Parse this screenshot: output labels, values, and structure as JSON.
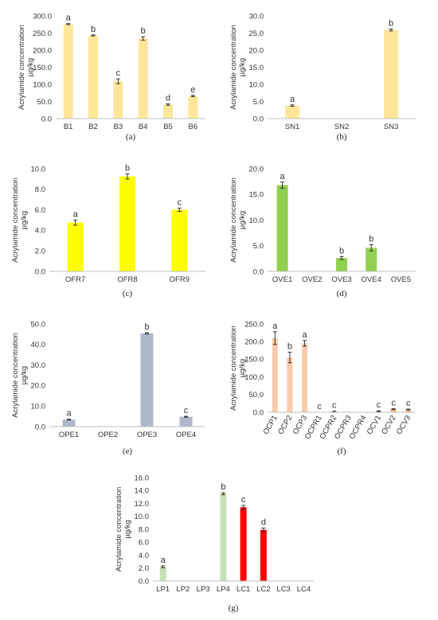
{
  "chart_data": [
    {
      "type": "bar",
      "panel_label": "(a)",
      "ylabel_lines": [
        "Acrylamide concentration",
        "µg/kg"
      ],
      "ylim": [
        0,
        300
      ],
      "yticks": [
        "0.0",
        "50.0",
        "100.0",
        "150.0",
        "200.0",
        "250.0",
        "300.0"
      ],
      "categories": [
        "B1",
        "B2",
        "B3",
        "B4",
        "B5",
        "B6"
      ],
      "values": [
        276,
        243,
        109,
        234,
        41,
        66
      ],
      "errors": [
        1.5,
        1.5,
        7,
        5,
        2,
        2
      ],
      "letters": [
        "a",
        "b",
        "c",
        "b",
        "d",
        "e"
      ],
      "colors": [
        "#ffe699",
        "#ffe699",
        "#ffe699",
        "#ffe699",
        "#ffe699",
        "#ffe699"
      ],
      "grid": false
    },
    {
      "type": "bar",
      "panel_label": "(b)",
      "ylabel_lines": [
        "Acrylamide concentration",
        "µg/kg"
      ],
      "ylim": [
        0,
        30
      ],
      "yticks": [
        "0.0",
        "5.0",
        "10.0",
        "15.0",
        "20.0",
        "25.0",
        "30.0"
      ],
      "categories": [
        "SN1",
        "SN2",
        "SN3"
      ],
      "values": [
        3.8,
        0,
        25.9
      ],
      "errors": [
        0.2,
        0,
        0.3
      ],
      "letters": [
        "a",
        "",
        "b"
      ],
      "colors": [
        "#ffe699",
        "#ffe699",
        "#ffe699"
      ],
      "grid": false
    },
    {
      "type": "bar",
      "panel_label": "(c)",
      "ylabel_lines": [
        "Acrylamide concentration",
        "µg/kg"
      ],
      "ylim": [
        0,
        10
      ],
      "yticks": [
        "0.0",
        "2.0",
        "4.0",
        "6.0",
        "8.0",
        "10.0"
      ],
      "categories": [
        "OFR7",
        "OFR8",
        "OFR9"
      ],
      "values": [
        4.75,
        9.25,
        6.0
      ],
      "errors": [
        0.25,
        0.25,
        0.15
      ],
      "letters": [
        "a",
        "b",
        "c"
      ],
      "colors": [
        "#ffff00",
        "#ffff00",
        "#ffff00"
      ],
      "grid": false
    },
    {
      "type": "bar",
      "panel_label": "(d)",
      "ylabel_lines": [
        "Acrylamide concentration",
        "µg/kg"
      ],
      "ylim": [
        0,
        20
      ],
      "yticks": [
        "0.0",
        "5.0",
        "10.0",
        "15.0",
        "20.0"
      ],
      "categories": [
        "OVE1",
        "OVE2",
        "OVE3",
        "OVE4",
        "OVE5"
      ],
      "values": [
        16.8,
        0,
        2.6,
        4.6,
        0
      ],
      "errors": [
        0.6,
        0,
        0.3,
        0.6,
        0
      ],
      "letters": [
        "a",
        "",
        "b",
        "b",
        ""
      ],
      "colors": [
        "#92d050",
        "#92d050",
        "#92d050",
        "#92d050",
        "#92d050"
      ],
      "grid": false
    },
    {
      "type": "bar",
      "panel_label": "(e)",
      "ylabel_lines": [
        "Acrylamide concentration",
        "µg/kg"
      ],
      "ylim": [
        0,
        50
      ],
      "yticks": [
        "0.0",
        "10.0",
        "20.0",
        "30.0",
        "40.0",
        "50.0"
      ],
      "categories": [
        "OPE1",
        "OPE2",
        "OPE3",
        "OPE4"
      ],
      "values": [
        3.4,
        0,
        45.4,
        4.8
      ],
      "errors": [
        0.2,
        0,
        0.3,
        0.2
      ],
      "letters": [
        "a",
        "",
        "b",
        "c"
      ],
      "colors": [
        "#adb9ca",
        "#adb9ca",
        "#adb9ca",
        "#adb9ca"
      ],
      "grid": false
    },
    {
      "type": "bar",
      "panel_label": "(f)",
      "ylabel_lines": [
        "Acrylamide concentration",
        "µg/kg"
      ],
      "ylim": [
        0,
        250
      ],
      "yticks": [
        "0.0",
        "50.0",
        "100.0",
        "150.0",
        "200.0",
        "250.0"
      ],
      "categories": [
        "OCP1",
        "OCP2",
        "OCP3",
        "OCPR1",
        "OCPR2",
        "OCPR3",
        "OCPR4",
        "OCV1",
        "OCV2",
        "OCV3"
      ],
      "values": [
        210,
        155,
        195,
        0,
        2,
        0,
        0,
        3,
        9,
        8
      ],
      "errors": [
        18,
        15,
        8,
        0,
        1,
        0,
        0,
        1,
        1,
        1
      ],
      "letters": [
        "a",
        "b",
        "a",
        "c",
        "c",
        "",
        "",
        "c",
        "c",
        "c"
      ],
      "colors": [
        "#f8cbad",
        "#f8cbad",
        "#f8cbad",
        "#f8cbad",
        "#f8cbad",
        "#f8cbad",
        "#f8cbad",
        "#f4b183",
        "#f4b183",
        "#f4b183"
      ],
      "grid": false
    },
    {
      "type": "bar",
      "panel_label": "(g)",
      "ylabel_lines": [
        "Acrylamide concentration",
        "µg/kg"
      ],
      "ylim": [
        0,
        16
      ],
      "yticks": [
        "0.0",
        "2.0",
        "4.0",
        "6.0",
        "8.0",
        "10.0",
        "12.0",
        "14.0",
        "16.0"
      ],
      "categories": [
        "LP1",
        "LP2",
        "LP3",
        "LP4",
        "LC1",
        "LC2",
        "LC3",
        "LC4"
      ],
      "values": [
        2.2,
        0,
        0,
        13.5,
        11.4,
        7.9,
        0,
        0
      ],
      "errors": [
        0.15,
        0,
        0,
        0.15,
        0.3,
        0.3,
        0,
        0
      ],
      "letters": [
        "a",
        "",
        "",
        "b",
        "c",
        "d",
        "",
        ""
      ],
      "colors": [
        "#c5e0b4",
        "#c5e0b4",
        "#c5e0b4",
        "#c5e0b4",
        "#ff0000",
        "#ff0000",
        "#ff0000",
        "#ff0000"
      ],
      "grid": false
    }
  ]
}
